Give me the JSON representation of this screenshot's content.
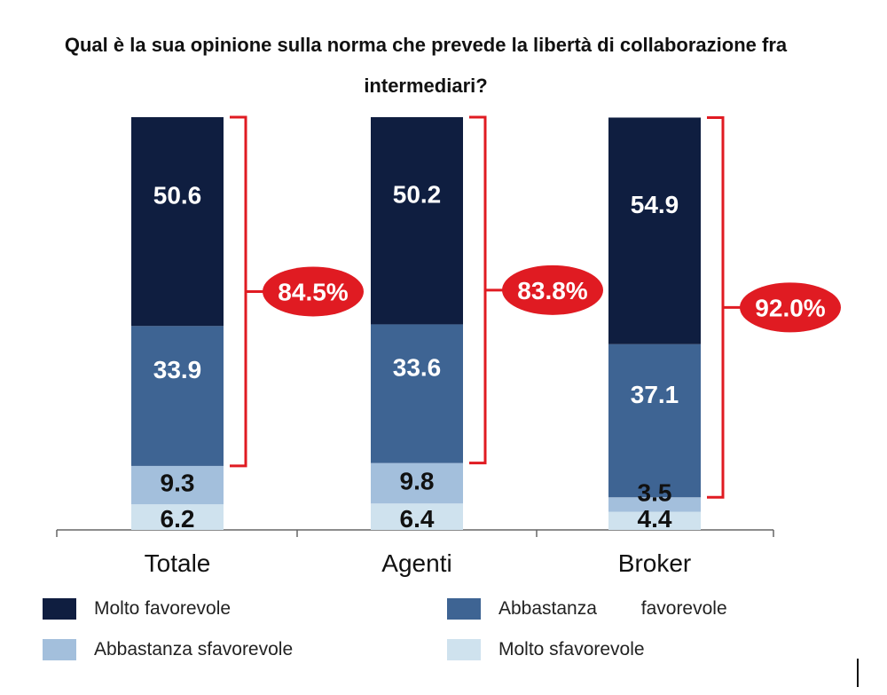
{
  "chart_data": {
    "type": "bar",
    "stacked": true,
    "title": "Qual è la sua opinione sulla norma che prevede la libertà di collaborazione fra intermediari?",
    "categories": [
      "Totale",
      "Agenti",
      "Broker"
    ],
    "series": [
      {
        "name": "Molto sfavorevole",
        "color": "#cfe2ee",
        "values": [
          6.2,
          6.4,
          4.4
        ]
      },
      {
        "name": "Abbastanza sfavorevole",
        "color": "#a3bfdc",
        "values": [
          9.3,
          9.8,
          3.5
        ]
      },
      {
        "name": "Abbastanza favorevole",
        "color": "#3e6493",
        "values": [
          33.9,
          33.6,
          37.1
        ]
      },
      {
        "name": "Molto favorevole",
        "color": "#0f1e40",
        "values": [
          50.6,
          50.2,
          54.9
        ]
      }
    ],
    "value_labels": [
      [
        "6.2",
        "6.4",
        "4.4"
      ],
      [
        "9.3",
        "9.8",
        "3.5"
      ],
      [
        "33.9",
        "33.6",
        "37.1"
      ],
      [
        "50.6",
        "50.2",
        "54.9"
      ]
    ],
    "totals_favorable": [
      "84.5%",
      "83.8%",
      "92.0%"
    ],
    "ylim": [
      0,
      100
    ],
    "xlabel": "",
    "ylabel": "",
    "grid": false,
    "legend": [
      {
        "label": "Molto favorevole",
        "color": "#0f1e40"
      },
      {
        "label": "Abbastanza favorevole",
        "color": "#3e6493"
      },
      {
        "label": "Abbastanza sfavorevole",
        "color": "#a3bfdc"
      },
      {
        "label": "Molto sfavorevole",
        "color": "#cfe2ee"
      }
    ],
    "legend_position": "bottom"
  },
  "colors": {
    "accent_red": "#e01b22",
    "axis": "#666666",
    "label_light": "#ffffff",
    "label_dark": "#111111"
  }
}
